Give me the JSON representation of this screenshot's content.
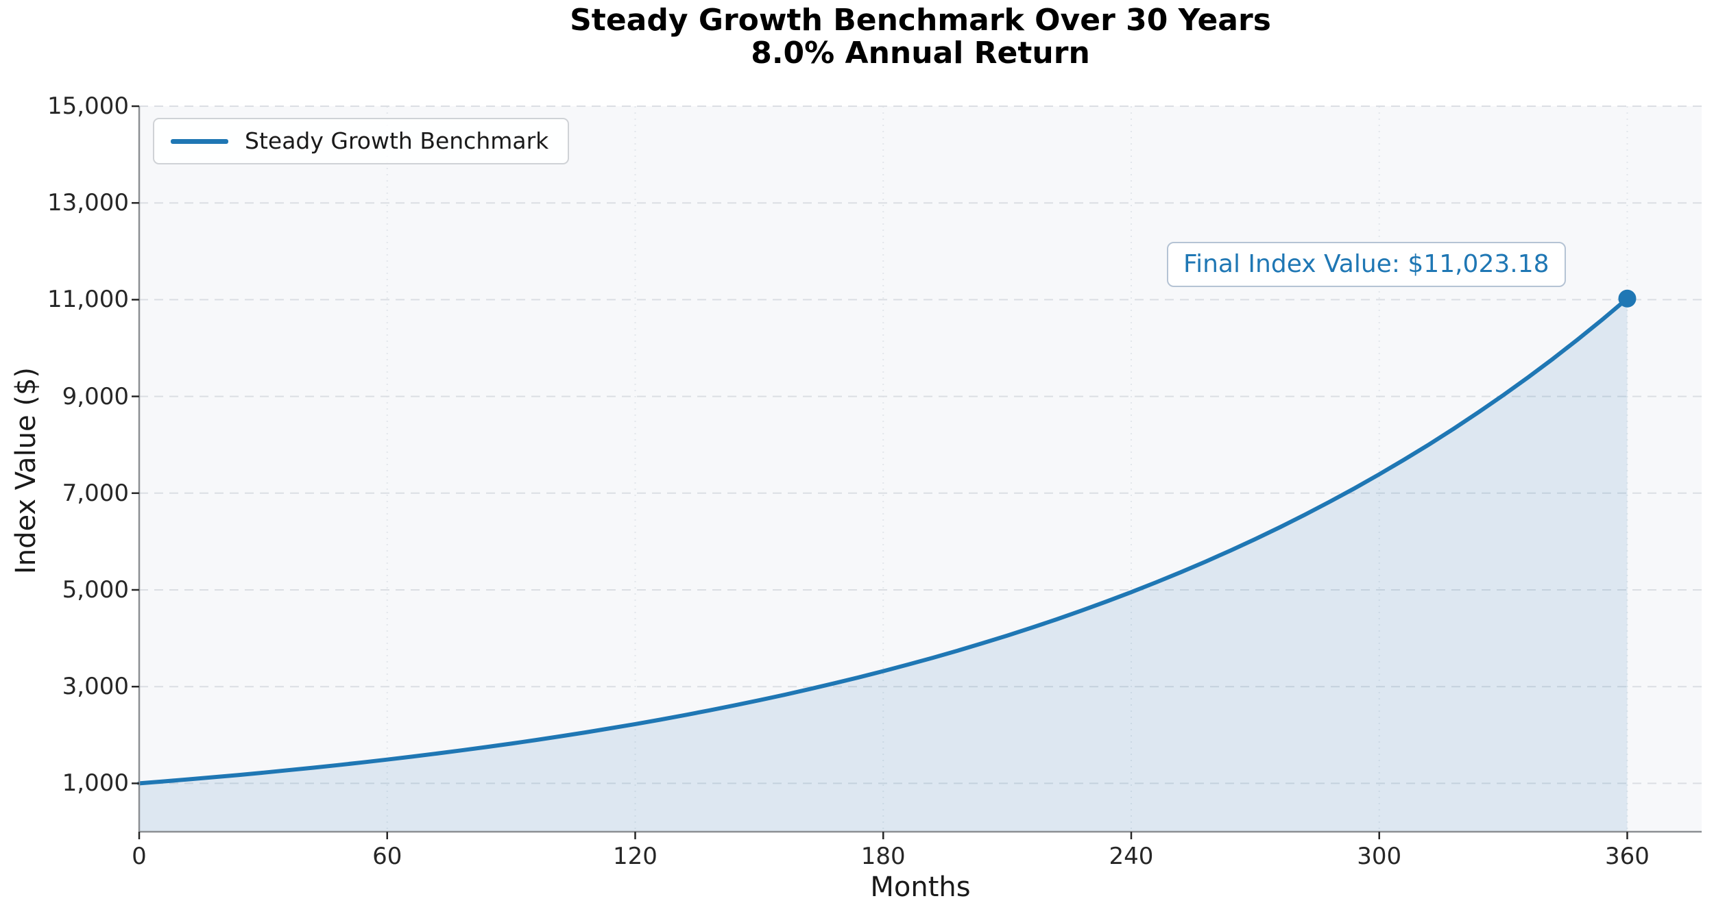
{
  "chart_data": {
    "type": "area",
    "title": "Steady Growth Benchmark Over 30 Years",
    "subtitle": "8.0% Annual Return",
    "xlabel": "Months",
    "ylabel": "Index Value ($)",
    "xlim": [
      0,
      378
    ],
    "ylim": [
      0,
      15000
    ],
    "grid": true,
    "panel_background": "#f7f8fa",
    "x_ticks": [
      0,
      60,
      120,
      180,
      240,
      300,
      360
    ],
    "x_tick_labels": [
      "0",
      "60",
      "120",
      "180",
      "240",
      "300",
      "360"
    ],
    "y_ticks": [
      1000,
      3000,
      5000,
      7000,
      9000,
      11000,
      13000,
      15000
    ],
    "y_tick_labels": [
      "1,000",
      "3,000",
      "5,000",
      "7,000",
      "9,000",
      "11,000",
      "13,000",
      "15,000"
    ],
    "legend": {
      "position": "upper-left",
      "entries": [
        {
          "label": "Steady Growth Benchmark",
          "color": "#1f77b4"
        }
      ]
    },
    "annotation": {
      "text": "Final Index Value: $11,023.18",
      "color": "#1f77b4"
    },
    "series": [
      {
        "name": "Steady Growth Benchmark",
        "color": "#1f77b4",
        "fill_opacity": 0.12,
        "x_start": 0,
        "x_step": 6,
        "values": [
          1000.0,
          1040.81,
          1083.29,
          1127.5,
          1173.51,
          1221.4,
          1271.25,
          1323.13,
          1377.13,
          1433.33,
          1491.82,
          1552.71,
          1616.07,
          1682.03,
          1750.67,
          1822.12,
          1896.48,
          1973.88,
          2054.43,
          2138.28,
          2225.54,
          2316.37,
          2410.9,
          2509.29,
          2611.7,
          2718.28,
          2829.22,
          2944.68,
          3064.85,
          3189.93,
          3320.12,
          3455.61,
          3596.64,
          3743.42,
          3896.19,
          4055.2,
          4220.7,
          4392.95,
          4572.23,
          4758.82,
          4953.03,
          5155.18,
          5365.56,
          5584.53,
          5812.44,
          6049.65,
          6296.54,
          6553.5,
          6820.96,
          7099.33,
          7389.06,
          7690.61,
          8004.47,
          8331.14,
          8671.14,
          9025.01,
          9393.33,
          9776.68,
          10175.67,
          10590.95,
          11023.18
        ],
        "final_point": {
          "x": 360,
          "y": 11023.18
        }
      }
    ]
  }
}
